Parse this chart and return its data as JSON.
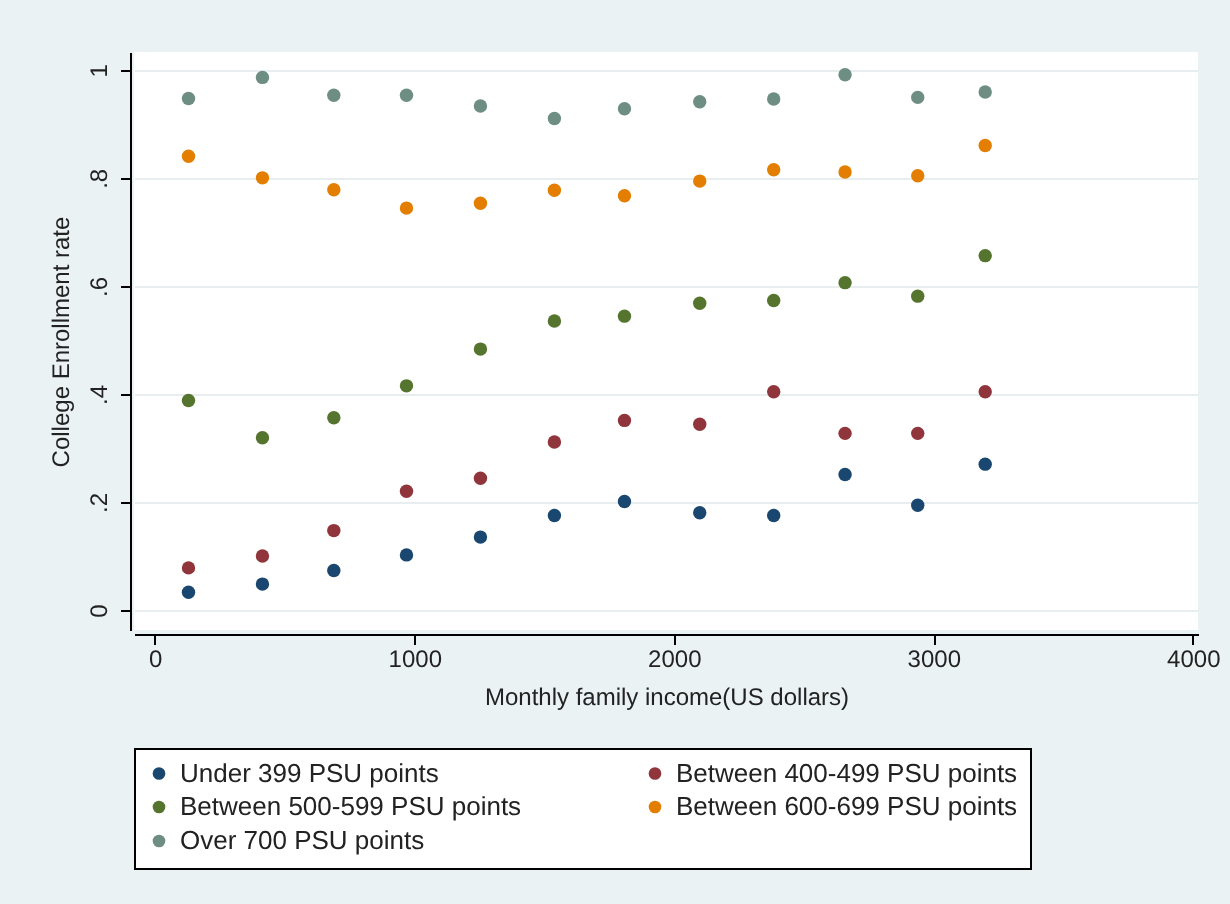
{
  "chart_data": {
    "type": "scatter",
    "xlabel": "Monthly family income(US dollars)",
    "ylabel": "College Enrollment rate",
    "x": [
      130,
      415,
      690,
      970,
      1255,
      1540,
      1810,
      2100,
      2385,
      2660,
      2940,
      3200
    ],
    "series": [
      {
        "name": "Under 399 PSU points",
        "color": "#1a476f",
        "values": [
          0.033,
          0.048,
          0.073,
          0.102,
          0.135,
          0.175,
          0.201,
          0.18,
          0.175,
          0.251,
          0.194,
          0.27
        ]
      },
      {
        "name": "Between 400-499 PSU points",
        "color": "#90353b",
        "values": [
          0.078,
          0.1,
          0.147,
          0.22,
          0.244,
          0.311,
          0.351,
          0.344,
          0.404,
          0.327,
          0.327,
          0.404
        ]
      },
      {
        "name": "Between 500-599 PSU points",
        "color": "#55752f",
        "values": [
          0.388,
          0.319,
          0.356,
          0.415,
          0.483,
          0.535,
          0.544,
          0.568,
          0.573,
          0.606,
          0.581,
          0.656
        ]
      },
      {
        "name": "Between 600-699 PSU points",
        "color": "#e37e00",
        "values": [
          0.84,
          0.8,
          0.778,
          0.744,
          0.753,
          0.777,
          0.767,
          0.794,
          0.815,
          0.811,
          0.804,
          0.86
        ]
      },
      {
        "name": "Over 700 PSU points",
        "color": "#6e8e84",
        "values": [
          0.947,
          0.986,
          0.953,
          0.953,
          0.933,
          0.91,
          0.928,
          0.941,
          0.946,
          0.991,
          0.949,
          0.959
        ]
      }
    ],
    "xlim": [
      -80,
      4020
    ],
    "xticks": [
      0,
      1000,
      2000,
      3000,
      4000
    ],
    "ylim": [
      -0.037,
      1.033
    ],
    "yticks": [
      0,
      {
        "value": 0.2,
        "label": ".2"
      },
      {
        "value": 0.4,
        "label": ".4"
      },
      {
        "value": 0.6,
        "label": ".6"
      },
      {
        "value": 0.8,
        "label": ".8"
      },
      1
    ],
    "grid": "y",
    "legend": "bottom",
    "marker": "circle"
  }
}
